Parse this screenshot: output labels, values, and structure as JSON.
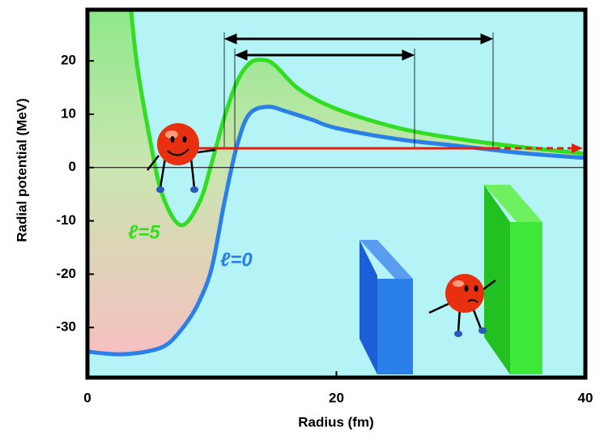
{
  "chart_data": {
    "type": "line",
    "xlabel": "Radius (fm)",
    "ylabel": "Radial potential (MeV)",
    "xlim": [
      0,
      40
    ],
    "xticks": [
      0,
      20,
      40
    ],
    "ylim": [
      -39.4,
      29.6
    ],
    "yticks": [
      20,
      10,
      0,
      -10,
      -20,
      -30
    ],
    "grid": false,
    "annotations": [
      "ℓ=5",
      "ℓ=0"
    ],
    "series": [
      {
        "name": "ℓ=5",
        "color": "#33dd22",
        "x": [
          3.5,
          4,
          5,
          6,
          7.5,
          9,
          10,
          11,
          12,
          13,
          14,
          15,
          17,
          20,
          25,
          30,
          35,
          40
        ],
        "values": [
          29.6,
          19,
          5.6,
          -5,
          -10.8,
          -6.5,
          1,
          9.4,
          16,
          19.5,
          20.2,
          19.3,
          14.7,
          11,
          7.4,
          5.3,
          3.8,
          2.6
        ]
      },
      {
        "name": "ℓ=0",
        "color": "#2a7fe8",
        "x": [
          0,
          1.5,
          3,
          5,
          6.5,
          8,
          9,
          10,
          11,
          12,
          13,
          14.5,
          16,
          18,
          20,
          25,
          30,
          35,
          40
        ],
        "values": [
          -34.5,
          -34.9,
          -35,
          -34.4,
          -33,
          -29,
          -25,
          -18.7,
          -6.5,
          4,
          10,
          11.4,
          10.5,
          9,
          7.4,
          5.3,
          4,
          2.7,
          1.8
        ]
      }
    ]
  }
}
